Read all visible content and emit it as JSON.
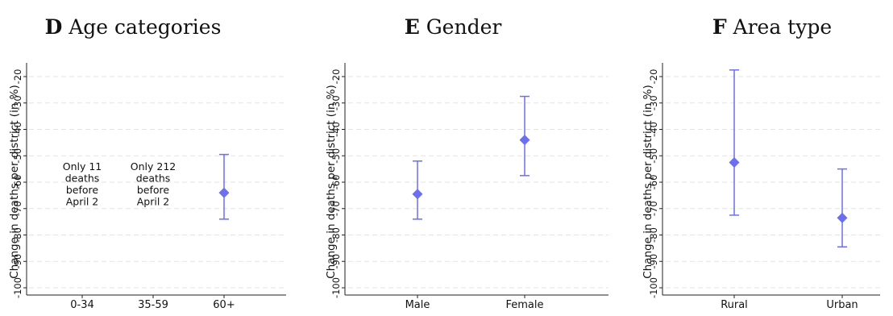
{
  "chart_data": [
    {
      "type": "scatter",
      "panel_letter": "D",
      "title": "Age categories",
      "ylabel": "Change in deaths per district (in %)",
      "ylim": [
        -100,
        -20
      ],
      "yticks": [
        -20,
        -30,
        -40,
        -50,
        -60,
        -70,
        -80,
        -90,
        -100
      ],
      "grid": true,
      "categories": [
        "0-34",
        "35-59",
        "60+"
      ],
      "points": [
        {
          "category": "0-34",
          "estimate": null,
          "ci_low": null,
          "ci_high": null,
          "note": "Only 11 deaths before April 2"
        },
        {
          "category": "35-59",
          "estimate": null,
          "ci_low": null,
          "ci_high": null,
          "note": "Only 212 deaths before April 2"
        },
        {
          "category": "60+",
          "estimate": -64,
          "ci_low": -74,
          "ci_high": -49.5,
          "note": ""
        }
      ],
      "color": "#6b6ff0"
    },
    {
      "type": "scatter",
      "panel_letter": "E",
      "title": "Gender",
      "ylabel": "Change in deaths per district (in %)",
      "ylim": [
        -100,
        -20
      ],
      "yticks": [
        -20,
        -30,
        -40,
        -50,
        -60,
        -70,
        -80,
        -90,
        -100
      ],
      "grid": true,
      "categories": [
        "Male",
        "Female"
      ],
      "points": [
        {
          "category": "Male",
          "estimate": -64.5,
          "ci_low": -74,
          "ci_high": -52,
          "note": ""
        },
        {
          "category": "Female",
          "estimate": -44,
          "ci_low": -57.5,
          "ci_high": -27.5,
          "note": ""
        }
      ],
      "color": "#6b6ff0"
    },
    {
      "type": "scatter",
      "panel_letter": "F",
      "title": "Area type",
      "ylabel": "Change in deaths per district (in %)",
      "ylim": [
        -100,
        -20
      ],
      "yticks": [
        -20,
        -30,
        -40,
        -50,
        -60,
        -70,
        -80,
        -90,
        -100
      ],
      "grid": true,
      "categories": [
        "Rural",
        "Urban"
      ],
      "points": [
        {
          "category": "Rural",
          "estimate": -52.5,
          "ci_low": -72.5,
          "ci_high": -17.5,
          "note": ""
        },
        {
          "category": "Urban",
          "estimate": -73.5,
          "ci_low": -84.5,
          "ci_high": -55,
          "note": ""
        }
      ],
      "color": "#6b6ff0"
    }
  ]
}
